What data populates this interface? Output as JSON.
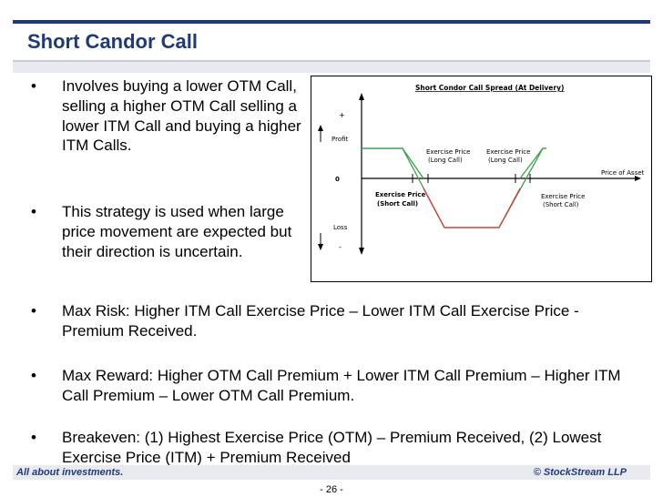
{
  "slide": {
    "title": "Short Candor Call",
    "bullets": [
      {
        "marker": "•",
        "text": "Involves buying a lower OTM Call, selling a higher OTM Call selling a lower ITM Call and buying a higher ITM Calls."
      },
      {
        "marker": "•",
        "text": "This strategy is used when large price movement are expected but their direction is uncertain."
      },
      {
        "marker": "•",
        "text": "Max Risk: Higher ITM Call Exercise Price – Lower ITM Call Exercise Price - Premium Received."
      },
      {
        "marker": "•",
        "text": "Max Reward: Higher OTM Call Premium + Lower ITM Call Premium – Higher ITM Call Premium – Lower OTM Call Premium."
      },
      {
        "marker": "•",
        "text": "Breakeven: (1) Highest Exercise Price (OTM) – Premium Received, (2) Lowest Exercise Price (ITM) + Premium Received"
      }
    ],
    "footer_left": "All about investments.",
    "footer_right": "© StockStream LLP",
    "page_number": "- 26 -"
  },
  "diagram": {
    "title": "Short Condor Call Spread (At Delivery)",
    "plus": "+",
    "minus": "-",
    "profit": "Profit",
    "zero": "0",
    "loss": "Loss",
    "x_axis_label": "Price of Asset",
    "labels": {
      "short_call_low_1": "Exercise Price",
      "short_call_low_2": "(Short Call)",
      "long_call_low_1": "Exercise Price",
      "long_call_low_2": "(Long Call)",
      "long_call_high_1": "Exercise Price",
      "long_call_high_2": "(Long Call)",
      "short_call_high_1": "Exercise Price",
      "short_call_high_2": "(Short Call)"
    },
    "colors": {
      "profit_line": "#3aa04a",
      "loss_line": "#e03030",
      "axis": "#000000"
    }
  }
}
